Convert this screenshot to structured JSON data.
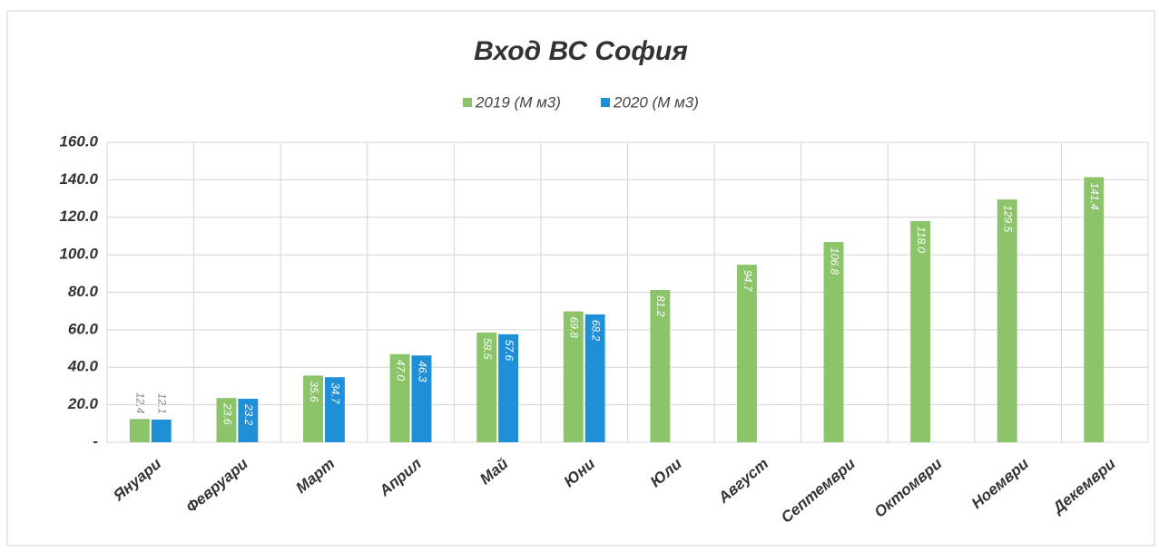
{
  "chart_data": {
    "type": "bar",
    "title": "Вход ВС София",
    "categories": [
      "Януари",
      "Февруари",
      "Март",
      "Април",
      "Май",
      "Юни",
      "Юли",
      "Август",
      "Септември",
      "Октомври",
      "Ноември",
      "Декември"
    ],
    "series": [
      {
        "name": "2019 (М м3)",
        "color": "#8cc46a",
        "values": [
          12.4,
          23.6,
          35.6,
          47.0,
          58.5,
          69.8,
          81.2,
          94.7,
          106.8,
          118.0,
          129.5,
          141.4
        ],
        "value_labels": [
          "12.4",
          "23.6",
          "35.6",
          "47.0",
          "58.5",
          "69.8",
          "81.2",
          "94.7",
          "106.8",
          "118.0",
          "129.5",
          "141.4"
        ]
      },
      {
        "name": "2020 (М м3)",
        "color": "#1f8fd8",
        "values": [
          12.1,
          23.2,
          34.7,
          46.3,
          57.6,
          68.2,
          null,
          null,
          null,
          null,
          null,
          null
        ],
        "value_labels": [
          "12.1",
          "23.2",
          "34.7",
          "46.3",
          "57.6",
          "68.2",
          null,
          null,
          null,
          null,
          null,
          null
        ]
      }
    ],
    "ylim": [
      0,
      160
    ],
    "yticks": [
      {
        "value": 0,
        "label": "-"
      },
      {
        "value": 20,
        "label": "20.0"
      },
      {
        "value": 40,
        "label": "40.0"
      },
      {
        "value": 60,
        "label": "60.0"
      },
      {
        "value": 80,
        "label": "80.0"
      },
      {
        "value": 100,
        "label": "100.0"
      },
      {
        "value": 120,
        "label": "120.0"
      },
      {
        "value": 140,
        "label": "140.0"
      },
      {
        "value": 160,
        "label": "160.0"
      }
    ],
    "grid": true,
    "legend": "top"
  }
}
